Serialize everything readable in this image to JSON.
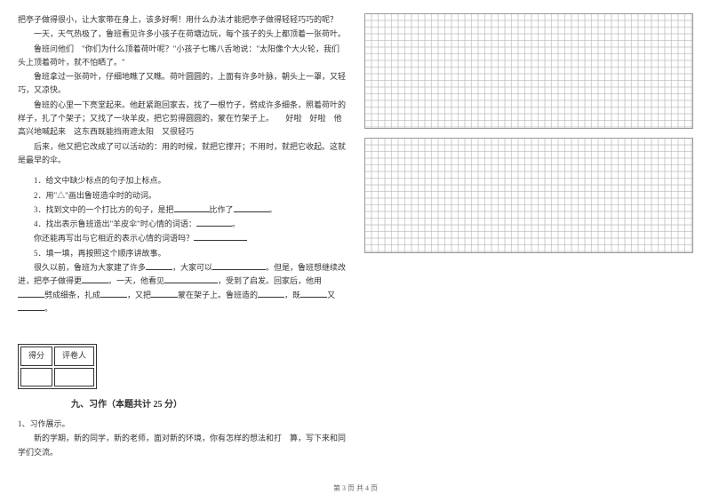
{
  "passage": {
    "p1": "把亭子做得很小，让大家带在身上，该多好啊！用什么办法才能把亭子做得轻轻巧巧的呢？",
    "p2": "一天，天气热极了，鲁班看见许多小孩子在荷塘边玩，每个孩子的头上都顶着一张荷叶。",
    "p3": "鲁班问他们　\"你们为什么顶着荷叶呢？\"小孩子七嘴八舌地说：\"太阳像个大火轮，我们头上顶着荷叶，就不怕晒了。\"",
    "p4": "鲁班拿过一张荷叶，仔细地瞧了又瞧。荷叶圆圆的，上面有许多叶脉，朝头上一罩，又轻巧，又凉快。",
    "p5": "鲁班的心里一下亮堂起来。他赶紧跑回家去，找了一根竹子，劈成许多细条，照着荷叶的样子，扎了个架子；又找了一块羊皮，把它剪得圆圆的，蒙在竹架子上。　　好啦　好啦　他高兴地喊起来　这东西既能挡雨遮太阳　又很轻巧",
    "p6": "后来，他又把它改成了可以活动的：用的时候，就把它撑开；不用时，就把它收起。这就是最早的伞。"
  },
  "questions": {
    "q1": "1．给文中缺少标点的句子加上标点。",
    "q2": "2．用\"△\"画出鲁班造伞时的动词。",
    "q3_pre": "3．找到文中的一个打比方的句子，是把",
    "q3_mid": "比作了",
    "q3_end": "。",
    "q4_pre": "4．找出表示鲁班造出\"羊皮伞\"时心情的词语：",
    "q4_end": "。",
    "q4b_pre": "你还能再写出与它相近的表示心情的词语吗？",
    "q5": "5．填一填，再按照这个顺序讲故事。",
    "q5a_1": "很久以前，鲁班为大家建了许多",
    "q5a_2": "，大家可以",
    "q5a_3": "。但是，鲁班想继续改进，把亭子做得更",
    "q5a_4": "。一天，他看见",
    "q5a_5": "，受到了启发。回家后，他用",
    "q5a_6": "劈成细条，扎成",
    "q5a_7": "，又把",
    "q5a_8": "蒙在架子上。鲁班造的",
    "q5a_9": "，既",
    "q5a_10": "又",
    "q5a_11": "。"
  },
  "scoreBox": {
    "c1": "得分",
    "c2": "评卷人"
  },
  "section": {
    "title": "九、习作（本题共计 25 分）"
  },
  "writing": {
    "label": "1、习作展示。",
    "prompt": "新的学期，新的同学，新的老师，面对新的环境，你有怎样的想法和打　算，写下来和同学们交流。"
  },
  "footer": "第 3 页 共 4 页"
}
